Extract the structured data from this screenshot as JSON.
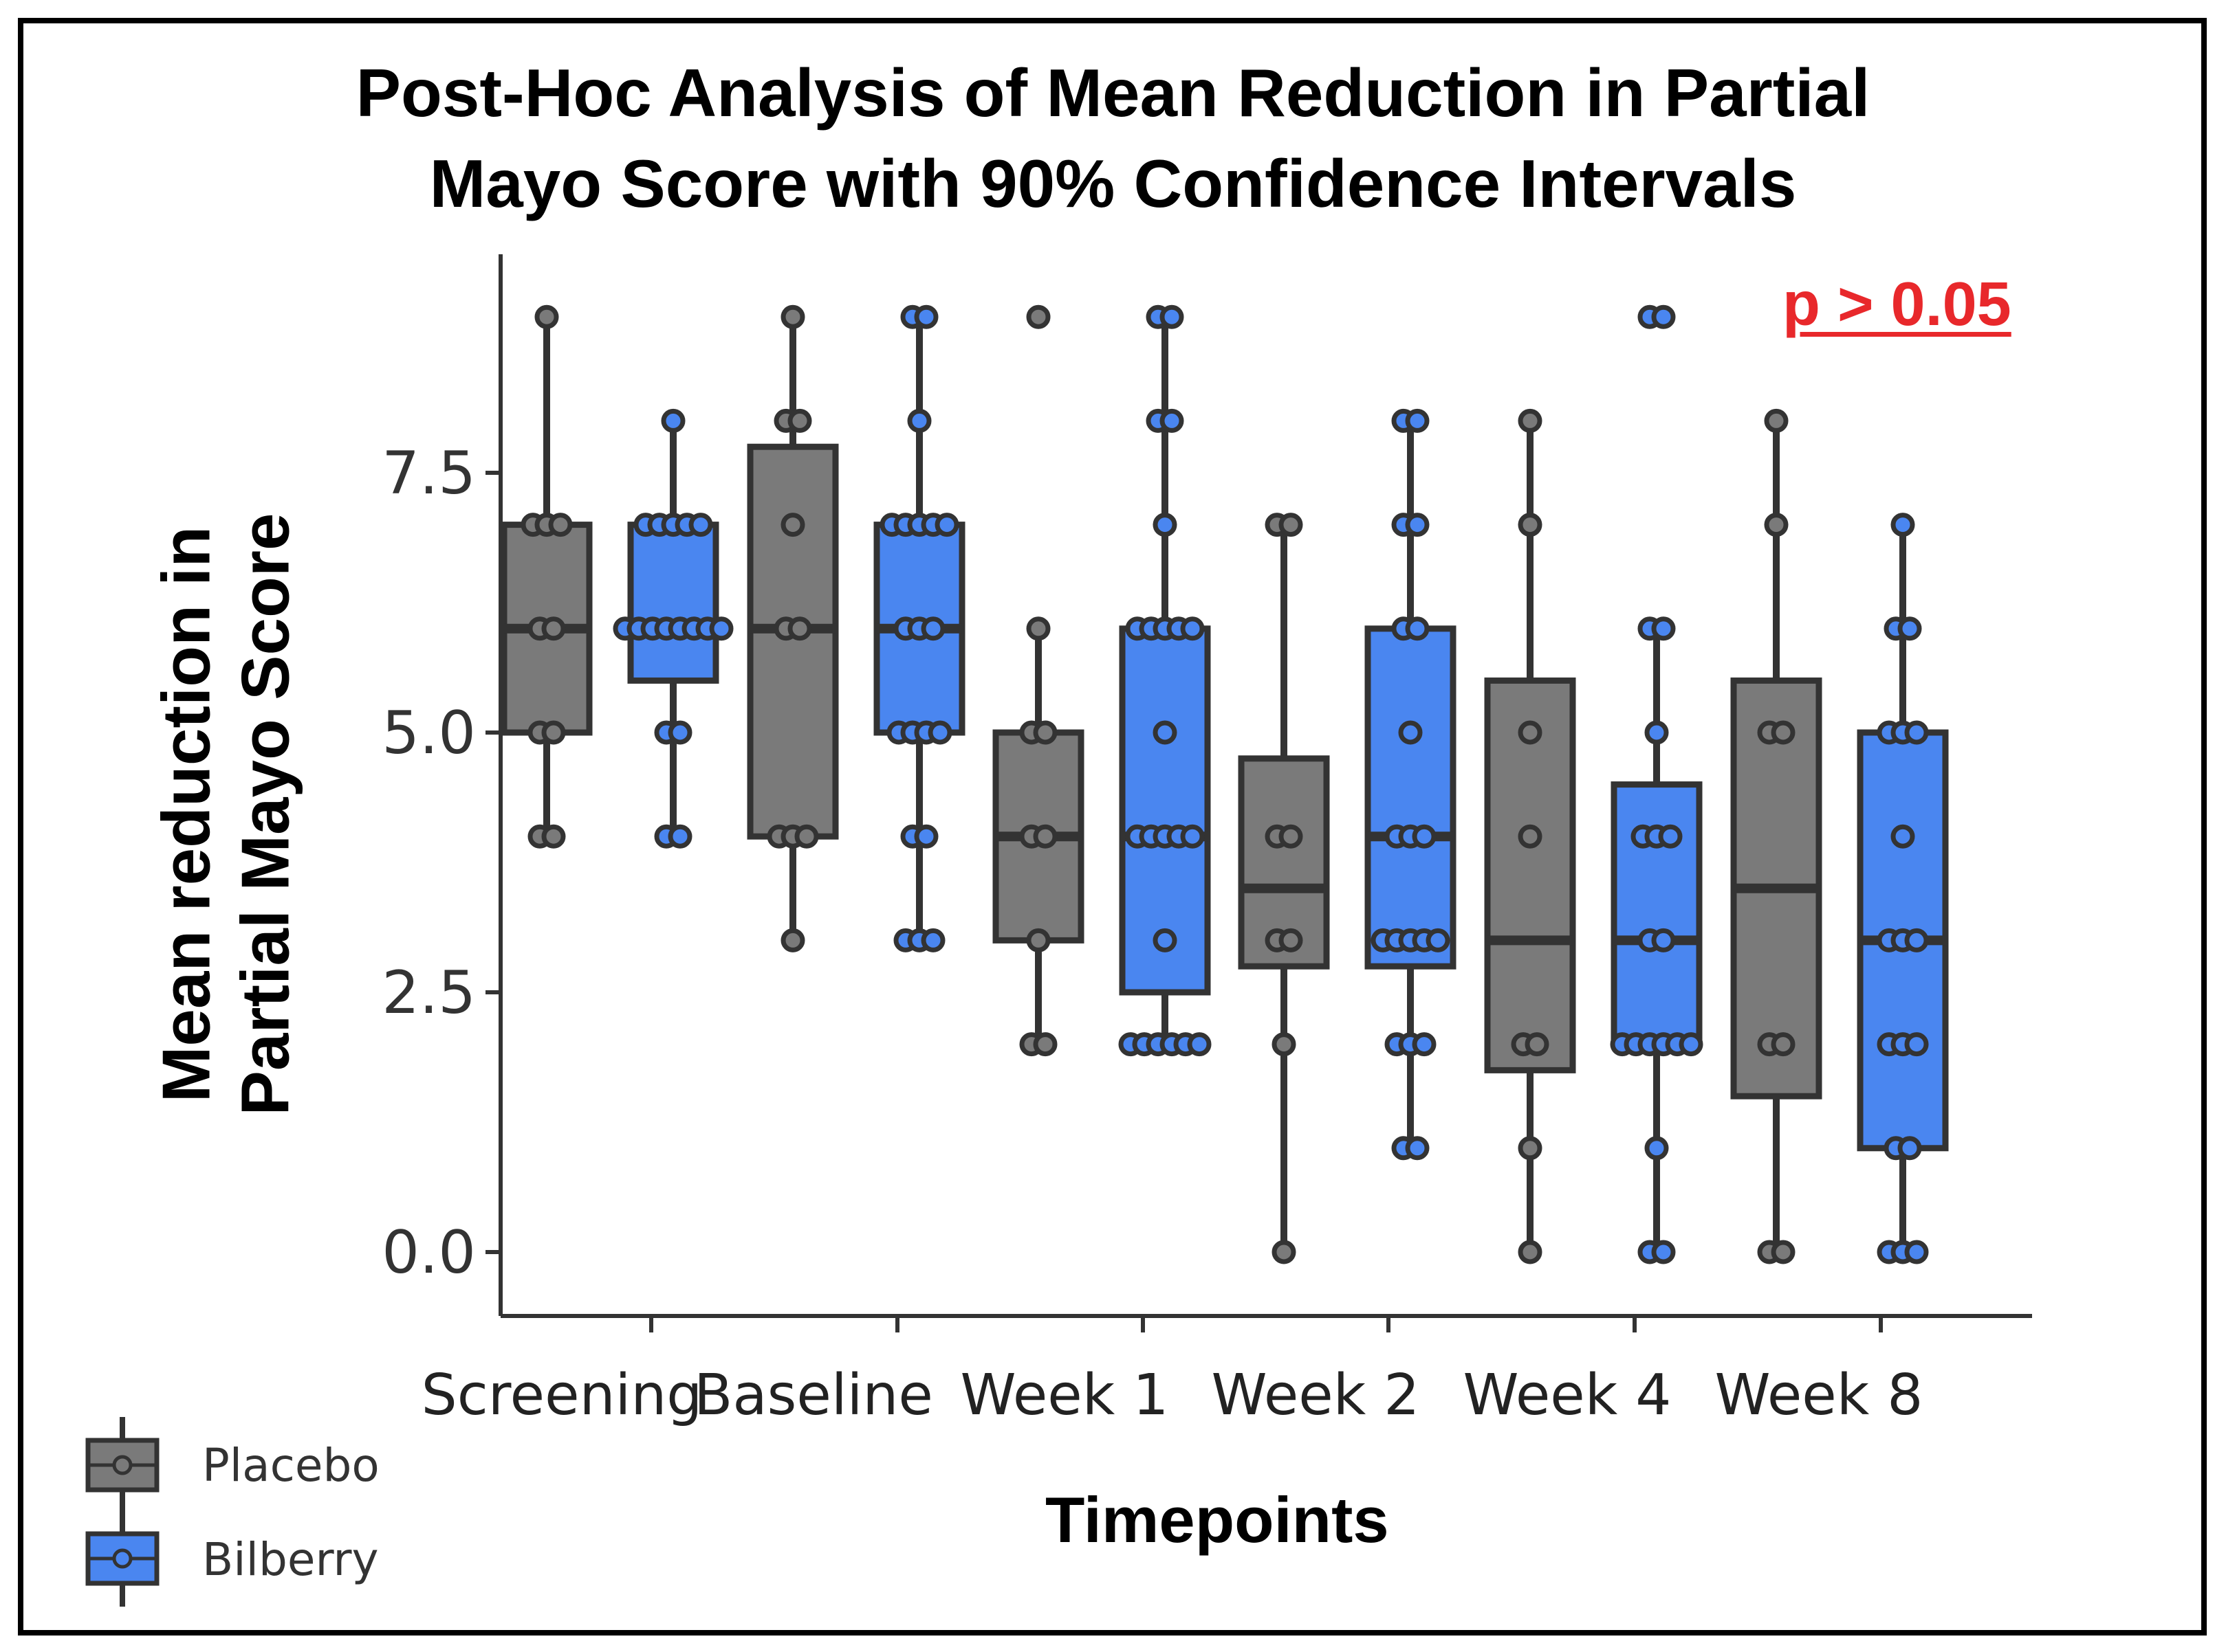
{
  "title_line1": "Post-Hoc Analysis of Mean Reduction in Partial",
  "title_line2": "Mayo Score with 90% Confidence Intervals",
  "significance": "p > 0.05",
  "colors": {
    "placebo": "#7a7a7a",
    "bilberry": "#4a86f0",
    "outline": "#333333",
    "significance": "#e8282b"
  },
  "chart_data": {
    "type": "box",
    "title": "Post-Hoc Analysis of Mean Reduction in Partial Mayo Score with 90% Confidence Intervals",
    "ylabel_line1": "Mean reduction in",
    "ylabel_line2": "Partial Mayo Score",
    "xlabel": "Timepoints",
    "ylim": [
      -0.6,
      9.6
    ],
    "yticks": [
      "0.0",
      "2.5",
      "5.0",
      "7.5"
    ],
    "ytick_values": [
      0,
      2.5,
      5,
      7.5
    ],
    "categories": [
      "Screening",
      "Baseline",
      "Week 1",
      "Week 2",
      "Week 4",
      "Week 8"
    ],
    "series": [
      {
        "name": "Placebo",
        "boxes": [
          {
            "q1": 5.0,
            "median": 6.0,
            "q3": 7.0,
            "whisker_low": 4,
            "whisker_high": 9,
            "points": [
              9,
              7,
              7,
              7,
              6,
              6,
              5,
              5,
              4,
              4
            ]
          },
          {
            "q1": 4.0,
            "median": 6.0,
            "q3": 7.75,
            "whisker_low": 3,
            "whisker_high": 9,
            "points": [
              9,
              8,
              8,
              7,
              6,
              6,
              4,
              4,
              4,
              3
            ]
          },
          {
            "q1": 3.0,
            "median": 4.0,
            "q3": 5.0,
            "whisker_low": 2,
            "whisker_high": 6,
            "points": [
              9,
              6,
              5,
              5,
              4,
              4,
              3,
              2,
              2
            ]
          },
          {
            "q1": 2.75,
            "median": 3.5,
            "q3": 4.75,
            "whisker_low": 0,
            "whisker_high": 7,
            "points": [
              7,
              7,
              4,
              4,
              3,
              3,
              2,
              0
            ]
          },
          {
            "q1": 1.75,
            "median": 3.0,
            "q3": 5.5,
            "whisker_low": 0,
            "whisker_high": 8,
            "points": [
              8,
              7,
              5,
              4,
              2,
              2,
              1,
              0
            ]
          },
          {
            "q1": 1.5,
            "median": 3.5,
            "q3": 5.5,
            "whisker_low": 0,
            "whisker_high": 8,
            "points": [
              8,
              7,
              5,
              5,
              2,
              2,
              0,
              0
            ]
          }
        ]
      },
      {
        "name": "Bilberry",
        "boxes": [
          {
            "q1": 5.5,
            "median": 6.0,
            "q3": 7.0,
            "whisker_low": 4,
            "whisker_high": 8,
            "points": [
              8,
              7,
              7,
              7,
              7,
              7,
              6,
              6,
              6,
              6,
              6,
              6,
              6,
              6,
              5,
              5,
              4,
              4
            ]
          },
          {
            "q1": 5.0,
            "median": 6.0,
            "q3": 7.0,
            "whisker_low": 3,
            "whisker_high": 9,
            "points": [
              9,
              9,
              8,
              7,
              7,
              7,
              7,
              7,
              6,
              6,
              6,
              5,
              5,
              5,
              5,
              4,
              4,
              3,
              3,
              3
            ]
          },
          {
            "q1": 2.5,
            "median": 4.0,
            "q3": 6.0,
            "whisker_low": 2,
            "whisker_high": 9,
            "points": [
              9,
              9,
              8,
              8,
              7,
              6,
              6,
              6,
              6,
              6,
              5,
              4,
              4,
              4,
              4,
              4,
              3,
              2,
              2,
              2,
              2,
              2,
              2
            ]
          },
          {
            "q1": 2.75,
            "median": 4.0,
            "q3": 6.0,
            "whisker_low": 1,
            "whisker_high": 8,
            "points": [
              8,
              8,
              7,
              7,
              6,
              6,
              5,
              4,
              4,
              4,
              3,
              3,
              3,
              3,
              3,
              2,
              2,
              2,
              1,
              1
            ]
          },
          {
            "q1": 2.0,
            "median": 3.0,
            "q3": 4.5,
            "whisker_low": 0,
            "whisker_high": 6,
            "points": [
              9,
              9,
              6,
              6,
              5,
              4,
              4,
              4,
              3,
              3,
              2,
              2,
              2,
              2,
              2,
              2,
              1,
              0,
              0
            ]
          },
          {
            "q1": 1.0,
            "median": 3.0,
            "q3": 5.0,
            "whisker_low": 0,
            "whisker_high": 7,
            "points": [
              7,
              6,
              6,
              5,
              5,
              5,
              4,
              3,
              3,
              3,
              2,
              2,
              2,
              1,
              1,
              0,
              0,
              0
            ]
          }
        ]
      }
    ],
    "legend": [
      "Placebo",
      "Bilberry"
    ],
    "legend_position": "bottom-left",
    "grid": false
  }
}
